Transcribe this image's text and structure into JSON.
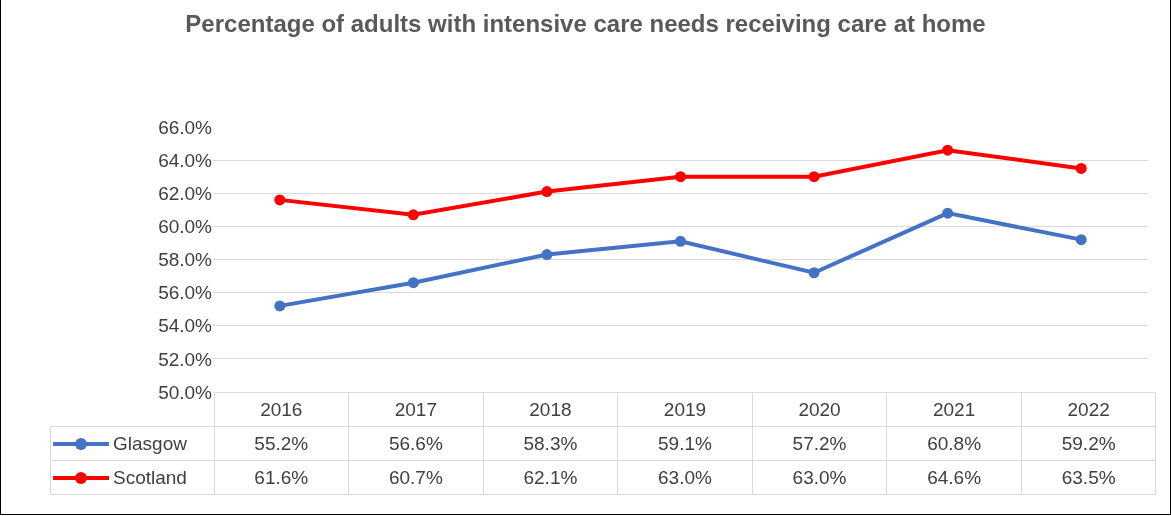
{
  "chart_data": {
    "type": "line",
    "title": "Percentage of adults with intensive care needs receiving care at home",
    "categories": [
      "2016",
      "2017",
      "2018",
      "2019",
      "2020",
      "2021",
      "2022"
    ],
    "series": [
      {
        "name": "Glasgow",
        "color": "#4472c4",
        "values": [
          55.2,
          56.6,
          58.3,
          59.1,
          57.2,
          60.8,
          59.2
        ],
        "value_labels": [
          "55.2%",
          "56.6%",
          "58.3%",
          "59.1%",
          "57.2%",
          "60.8%",
          "59.2%"
        ]
      },
      {
        "name": "Scotland",
        "color": "#ff0000",
        "values": [
          61.6,
          60.7,
          62.1,
          63.0,
          63.0,
          64.6,
          63.5
        ],
        "value_labels": [
          "61.6%",
          "60.7%",
          "62.1%",
          "63.0%",
          "63.0%",
          "64.6%",
          "63.5%"
        ]
      }
    ],
    "ylim": [
      50,
      66
    ],
    "yticks": [
      {
        "value": 50,
        "label": "50.0%"
      },
      {
        "value": 52,
        "label": "52.0%"
      },
      {
        "value": 54,
        "label": "54.0%"
      },
      {
        "value": 56,
        "label": "56.0%"
      },
      {
        "value": 58,
        "label": "58.0%"
      },
      {
        "value": 60,
        "label": "60.0%"
      },
      {
        "value": 62,
        "label": "62.0%"
      },
      {
        "value": 64,
        "label": "64.0%"
      },
      {
        "value": 66,
        "label": "66.0%"
      }
    ],
    "grid": "y",
    "legend": "bottom",
    "marker": "circle",
    "line_style": "solid"
  }
}
